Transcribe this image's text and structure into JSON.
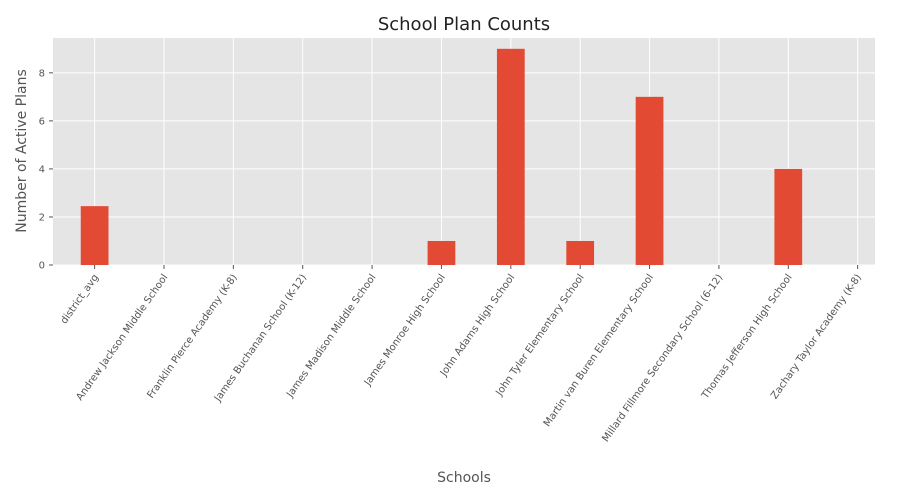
{
  "chart_data": {
    "type": "bar",
    "title": "School Plan Counts",
    "xlabel": "Schools",
    "ylabel": "Number of Active Plans",
    "categories": [
      "district_avg",
      "Andrew Jackson Middle School",
      "Franklin Pierce Academy (K-8)",
      "James Buchanan School (K-12)",
      "James Madison Middle School",
      "James Monroe High School",
      "John Adams High School",
      "John Tyler Elementary School",
      "Martin van Buren Elementary School",
      "Millard Fillmore Secondary School (6-12)",
      "Thomas Jefferson High School",
      "Zachary Taylor Academy (K-8)"
    ],
    "values": [
      2.45,
      0,
      0,
      0,
      0,
      1,
      9,
      1,
      7,
      0,
      4,
      0
    ],
    "ylim": [
      0,
      9.45
    ],
    "yticks": [
      0,
      2,
      4,
      6,
      8
    ],
    "grid": true,
    "colors": {
      "bar": "#E24A33",
      "plot_background": "#E5E5E5",
      "grid": "#FFFFFF"
    }
  }
}
